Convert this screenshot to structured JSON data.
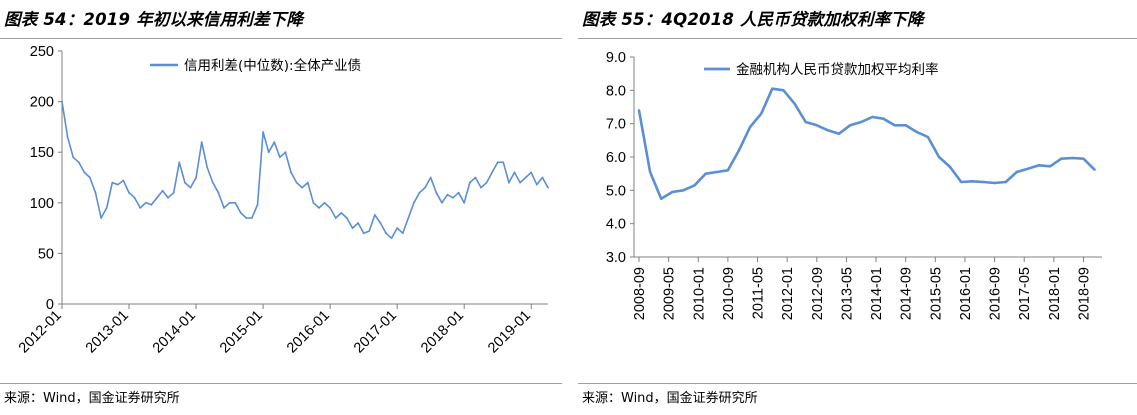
{
  "source_text": "来源：Wind，国金证券研究所",
  "line_color": "#5b8fd4",
  "chart_data": [
    {
      "type": "line",
      "title": "图表 54：2019 年初以来信用利差下降",
      "legend_position": "top-center",
      "xlabel": "",
      "ylabel": "",
      "ylim": [
        0,
        250
      ],
      "yticks": [
        "0",
        "50",
        "100",
        "150",
        "200",
        "250"
      ],
      "xticks": [
        "2012-01",
        "2013-01",
        "2014-01",
        "2015-01",
        "2016-01",
        "2017-01",
        "2018-01",
        "2019-01"
      ],
      "x_range": [
        "2012-01",
        "2019-04"
      ],
      "grid": false,
      "series": [
        {
          "name": "信用利差(中位数):全体产业债",
          "x": [
            "2012-01",
            "2012-02",
            "2012-03",
            "2012-04",
            "2012-05",
            "2012-06",
            "2012-07",
            "2012-08",
            "2012-09",
            "2012-10",
            "2012-11",
            "2012-12",
            "2013-01",
            "2013-02",
            "2013-03",
            "2013-04",
            "2013-05",
            "2013-06",
            "2013-07",
            "2013-08",
            "2013-09",
            "2013-10",
            "2013-11",
            "2013-12",
            "2014-01",
            "2014-02",
            "2014-03",
            "2014-04",
            "2014-05",
            "2014-06",
            "2014-07",
            "2014-08",
            "2014-09",
            "2014-10",
            "2014-11",
            "2014-12",
            "2015-01",
            "2015-02",
            "2015-03",
            "2015-04",
            "2015-05",
            "2015-06",
            "2015-07",
            "2015-08",
            "2015-09",
            "2015-10",
            "2015-11",
            "2015-12",
            "2016-01",
            "2016-02",
            "2016-03",
            "2016-04",
            "2016-05",
            "2016-06",
            "2016-07",
            "2016-08",
            "2016-09",
            "2016-10",
            "2016-11",
            "2016-12",
            "2017-01",
            "2017-02",
            "2017-03",
            "2017-04",
            "2017-05",
            "2017-06",
            "2017-07",
            "2017-08",
            "2017-09",
            "2017-10",
            "2017-11",
            "2017-12",
            "2018-01",
            "2018-02",
            "2018-03",
            "2018-04",
            "2018-05",
            "2018-06",
            "2018-07",
            "2018-08",
            "2018-09",
            "2018-10",
            "2018-11",
            "2018-12",
            "2019-01",
            "2019-02",
            "2019-03",
            "2019-04"
          ],
          "values": [
            200,
            165,
            145,
            140,
            130,
            125,
            110,
            85,
            95,
            120,
            118,
            122,
            110,
            105,
            95,
            100,
            98,
            105,
            112,
            105,
            110,
            140,
            120,
            115,
            125,
            160,
            135,
            120,
            110,
            95,
            100,
            100,
            90,
            85,
            85,
            98,
            170,
            150,
            160,
            145,
            150,
            130,
            120,
            115,
            120,
            100,
            95,
            100,
            95,
            85,
            90,
            85,
            75,
            80,
            70,
            72,
            88,
            80,
            70,
            65,
            75,
            70,
            85,
            100,
            110,
            115,
            125,
            110,
            100,
            108,
            105,
            110,
            100,
            120,
            125,
            115,
            120,
            130,
            140,
            140,
            120,
            130,
            120,
            125,
            130,
            118,
            125,
            115
          ]
        }
      ]
    },
    {
      "type": "line",
      "title": "图表 55：4Q2018 人民币贷款加权利率下降",
      "legend_position": "top-center",
      "xlabel": "",
      "ylabel": "",
      "ylim": [
        3.0,
        9.0
      ],
      "yticks": [
        "3.0",
        "4.0",
        "5.0",
        "6.0",
        "7.0",
        "8.0",
        "9.0"
      ],
      "xticks": [
        "2008-09",
        "2009-05",
        "2010-01",
        "2010-09",
        "2011-05",
        "2012-01",
        "2012-09",
        "2013-05",
        "2014-01",
        "2014-09",
        "2015-05",
        "2016-01",
        "2016-09",
        "2017-05",
        "2018-01",
        "2018-09"
      ],
      "grid": false,
      "series": [
        {
          "name": "金融机构人民币贷款加权平均利率",
          "x": [
            "2008-09",
            "2008-12",
            "2009-03",
            "2009-06",
            "2009-09",
            "2009-12",
            "2010-03",
            "2010-06",
            "2010-09",
            "2010-12",
            "2011-03",
            "2011-06",
            "2011-09",
            "2011-12",
            "2012-03",
            "2012-06",
            "2012-09",
            "2012-12",
            "2013-03",
            "2013-06",
            "2013-09",
            "2013-12",
            "2014-03",
            "2014-06",
            "2014-09",
            "2014-12",
            "2015-03",
            "2015-06",
            "2015-09",
            "2015-12",
            "2016-03",
            "2016-06",
            "2016-09",
            "2016-12",
            "2017-03",
            "2017-06",
            "2017-09",
            "2017-12",
            "2018-03",
            "2018-06",
            "2018-09",
            "2018-12"
          ],
          "values": [
            7.4,
            5.55,
            4.75,
            4.95,
            5.0,
            5.15,
            5.5,
            5.55,
            5.6,
            6.2,
            6.9,
            7.3,
            8.05,
            8.0,
            7.6,
            7.05,
            6.95,
            6.8,
            6.7,
            6.95,
            7.05,
            7.2,
            7.15,
            6.95,
            6.95,
            6.75,
            6.6,
            6.0,
            5.7,
            5.25,
            5.27,
            5.25,
            5.22,
            5.25,
            5.55,
            5.65,
            5.75,
            5.72,
            5.95,
            5.97,
            5.95,
            5.62
          ]
        }
      ]
    }
  ]
}
